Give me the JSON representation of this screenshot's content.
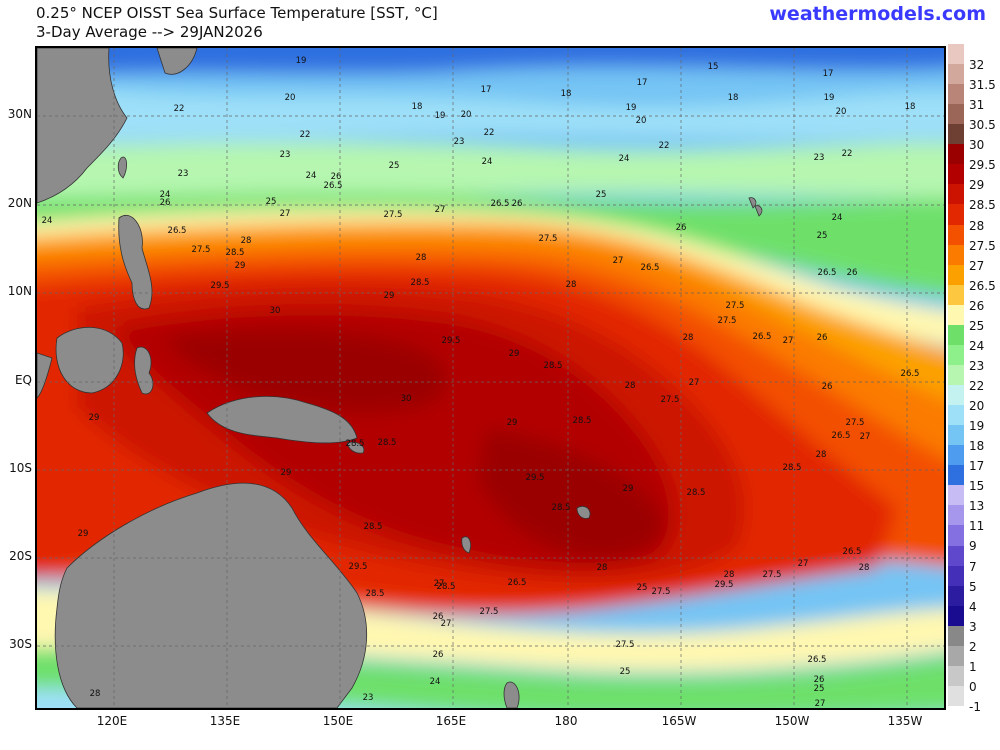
{
  "header": {
    "title_line1": "0.25° NCEP OISST Sea Surface Temperature [SST, °C]",
    "title_line2": "3-Day Average --> 29JAN2026",
    "brand": "weathermodels.com"
  },
  "axes": {
    "lat_labels": [
      "30N",
      "20N",
      "10N",
      "EQ",
      "10S",
      "20S",
      "30S"
    ],
    "lon_labels": [
      "120E",
      "135E",
      "150E",
      "165E",
      "180",
      "165W",
      "150W",
      "135W"
    ]
  },
  "colorbar": {
    "labels": [
      "32",
      "31.5",
      "31",
      "30.5",
      "30",
      "29.5",
      "29",
      "28.5",
      "28",
      "27.5",
      "27",
      "26.5",
      "26",
      "25",
      "24",
      "23",
      "22",
      "20",
      "19",
      "18",
      "17",
      "15",
      "13",
      "11",
      "9",
      "7",
      "5",
      "4",
      "3",
      "2",
      "1",
      "0",
      "-1"
    ],
    "colors": [
      "#e8c8c0",
      "#d2a89c",
      "#b88578",
      "#9b6558",
      "#6e4034",
      "#9b0000",
      "#b20000",
      "#cc1200",
      "#e22800",
      "#f35000",
      "#fb7a00",
      "#fca000",
      "#fdc840",
      "#fff8b0",
      "#6ee06a",
      "#8ef08a",
      "#b6f6b0",
      "#c4f2f0",
      "#9ee0f8",
      "#74c4f4",
      "#4e9cf0",
      "#2f70e0",
      "#c8bcf4",
      "#a696ec",
      "#8470e0",
      "#6048cc",
      "#4430b8",
      "#2c1ca0",
      "#1a0c90",
      "#888888",
      "#a8a8a8",
      "#c8c8c8",
      "#e0e0e0"
    ]
  },
  "map_labels": [
    {
      "t": "19"
    },
    {
      "t": "20"
    },
    {
      "t": "22"
    },
    {
      "t": "18"
    },
    {
      "t": "19"
    },
    {
      "t": "20"
    },
    {
      "t": "17"
    },
    {
      "t": "18"
    },
    {
      "t": "17"
    },
    {
      "t": "19"
    },
    {
      "t": "20"
    },
    {
      "t": "15"
    },
    {
      "t": "18"
    },
    {
      "t": "17"
    },
    {
      "t": "19"
    },
    {
      "t": "20"
    },
    {
      "t": "18"
    },
    {
      "t": "22"
    },
    {
      "t": "23"
    },
    {
      "t": "22"
    },
    {
      "t": "23"
    },
    {
      "t": "24"
    },
    {
      "t": "22"
    },
    {
      "t": "24"
    },
    {
      "t": "23"
    },
    {
      "t": "22"
    },
    {
      "t": "23"
    },
    {
      "t": "25"
    },
    {
      "t": "24"
    },
    {
      "t": "26"
    },
    {
      "t": "26.5"
    },
    {
      "t": "24"
    },
    {
      "t": "26"
    },
    {
      "t": "25"
    },
    {
      "t": "24"
    },
    {
      "t": "25"
    },
    {
      "t": "27"
    },
    {
      "t": "27.5"
    },
    {
      "t": "27"
    },
    {
      "t": "26.5"
    },
    {
      "t": "26"
    },
    {
      "t": "24"
    },
    {
      "t": "26.5"
    },
    {
      "t": "27.5"
    },
    {
      "t": "28.5"
    },
    {
      "t": "28"
    },
    {
      "t": "29"
    },
    {
      "t": "28"
    },
    {
      "t": "27.5"
    },
    {
      "t": "27"
    },
    {
      "t": "26.5"
    },
    {
      "t": "26"
    },
    {
      "t": "25"
    },
    {
      "t": "29.5"
    },
    {
      "t": "30"
    },
    {
      "t": "29"
    },
    {
      "t": "28.5"
    },
    {
      "t": "28"
    },
    {
      "t": "29.5"
    },
    {
      "t": "29"
    },
    {
      "t": "28.5"
    },
    {
      "t": "27.5"
    },
    {
      "t": "27.5"
    },
    {
      "t": "28"
    },
    {
      "t": "26.5"
    },
    {
      "t": "27"
    },
    {
      "t": "26"
    },
    {
      "t": "26"
    },
    {
      "t": "26.5"
    },
    {
      "t": "30"
    },
    {
      "t": "29"
    },
    {
      "t": "28"
    },
    {
      "t": "27"
    },
    {
      "t": "27.5"
    },
    {
      "t": "26"
    },
    {
      "t": "26.5"
    },
    {
      "t": "28.5"
    },
    {
      "t": "28.5"
    },
    {
      "t": "29"
    },
    {
      "t": "29.5"
    },
    {
      "t": "28.5"
    },
    {
      "t": "27.5"
    },
    {
      "t": "27"
    },
    {
      "t": "26.5"
    },
    {
      "t": "28"
    },
    {
      "t": "28.5"
    },
    {
      "t": "29"
    },
    {
      "t": "29"
    },
    {
      "t": "28.5"
    },
    {
      "t": "29.5"
    },
    {
      "t": "28.5"
    },
    {
      "t": "28.5"
    },
    {
      "t": "29"
    },
    {
      "t": "28"
    },
    {
      "t": "28.5"
    },
    {
      "t": "26.5"
    },
    {
      "t": "27.5"
    },
    {
      "t": "25"
    },
    {
      "t": "29.5"
    },
    {
      "t": "28"
    },
    {
      "t": "27.5"
    },
    {
      "t": "26.5"
    },
    {
      "t": "27"
    },
    {
      "t": "28"
    },
    {
      "t": "27.5"
    },
    {
      "t": "28.5"
    },
    {
      "t": "27"
    },
    {
      "t": "26"
    },
    {
      "t": "26"
    },
    {
      "t": "24"
    },
    {
      "t": "25"
    },
    {
      "t": "27"
    },
    {
      "t": "27.5"
    },
    {
      "t": "26.5"
    },
    {
      "t": "26"
    },
    {
      "t": "25"
    },
    {
      "t": "27"
    },
    {
      "t": "28"
    },
    {
      "t": "23"
    },
    {
      "t": "22"
    },
    {
      "t": "24"
    },
    {
      "t": "22"
    },
    {
      "t": "23"
    },
    {
      "t": "25"
    },
    {
      "t": "24"
    },
    {
      "t": "23"
    },
    {
      "t": "22"
    },
    {
      "t": "20"
    },
    {
      "t": "25"
    }
  ],
  "land_color": "#8c8c8c"
}
